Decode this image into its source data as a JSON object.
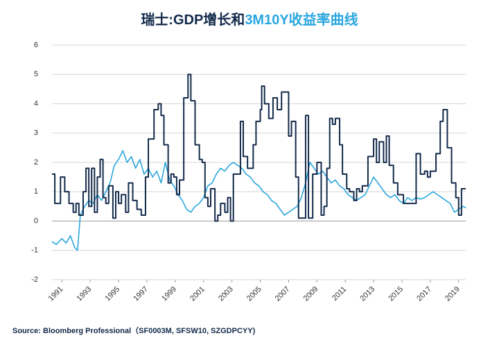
{
  "chart_data": {
    "type": "line",
    "title": [
      {
        "text": "瑞士:GDP增长和",
        "color": "#12294a"
      },
      {
        "text": "3M10Y收益率曲线",
        "color": "#2aa6de"
      }
    ],
    "source": "Source: Bloomberg Professional（SF0003M, SFSW10, SZGDPCYY)",
    "xlim": [
      1990.3,
      2019.5
    ],
    "xticks": [
      1991,
      1993,
      1995,
      1997,
      1999,
      2001,
      2003,
      2005,
      2007,
      2009,
      2011,
      2013,
      2015,
      2017,
      2019
    ],
    "ylim": [
      -2,
      6
    ],
    "yticks": [
      -2,
      -1,
      0,
      1,
      2,
      3,
      4,
      5,
      6
    ],
    "grid": true,
    "series": [
      {
        "color": "#12294a",
        "step": true,
        "x": [
          1990.3,
          1990.5,
          1990.9,
          1991.2,
          1991.5,
          1991.8,
          1992.0,
          1992.2,
          1992.5,
          1992.7,
          1992.9,
          1993.1,
          1993.3,
          1993.5,
          1993.7,
          1993.9,
          1994.1,
          1994.3,
          1994.6,
          1994.8,
          1995.0,
          1995.2,
          1995.5,
          1995.7,
          1996.0,
          1996.3,
          1996.6,
          1996.9,
          1997.1,
          1997.5,
          1997.8,
          1998.0,
          1998.2,
          1998.5,
          1998.7,
          1998.9,
          1999.1,
          1999.3,
          1999.6,
          1999.9,
          2000.1,
          2000.4,
          2000.7,
          2000.9,
          2001.1,
          2001.3,
          2001.5,
          2001.8,
          2002.0,
          2002.2,
          2002.5,
          2002.7,
          2002.9,
          2003.1,
          2003.6,
          2003.8,
          2004.1,
          2004.5,
          2004.7,
          2005.0,
          2005.1,
          2005.3,
          2005.6,
          2005.9,
          2006.2,
          2006.5,
          2006.7,
          2007.0,
          2007.2,
          2007.5,
          2007.7,
          2008.2,
          2008.4,
          2008.7,
          2009.0,
          2009.3,
          2009.5,
          2009.7,
          2009.9,
          2010.1,
          2010.3,
          2010.6,
          2010.8,
          2011.1,
          2011.3,
          2011.6,
          2011.8,
          2012.0,
          2012.2,
          2012.6,
          2012.8,
          2013.0,
          2013.2,
          2013.4,
          2013.7,
          2013.9,
          2014.1,
          2014.4,
          2014.7,
          2015.1,
          2015.5,
          2016.0,
          2016.3,
          2016.6,
          2016.8,
          2017.0,
          2017.4,
          2017.7,
          2017.9,
          2018.2,
          2018.5,
          2018.8,
          2019.0,
          2019.2,
          2019.5
        ],
        "values": [
          1.6,
          0.6,
          1.5,
          1.0,
          0.6,
          0.3,
          0.6,
          0.2,
          1.0,
          1.8,
          0.5,
          1.8,
          0.3,
          1.5,
          2.1,
          0.8,
          0.6,
          1.2,
          0.1,
          1.0,
          0.6,
          0.9,
          0.3,
          1.3,
          0.7,
          0.4,
          0.2,
          1.5,
          2.8,
          3.8,
          4.0,
          3.6,
          2.6,
          1.3,
          1.6,
          1.5,
          0.9,
          1.4,
          4.2,
          5.0,
          4.1,
          2.6,
          2.1,
          2.0,
          0.8,
          0.5,
          1.1,
          0.0,
          0.2,
          0.6,
          0.3,
          0.8,
          0.0,
          1.6,
          3.4,
          2.2,
          1.8,
          2.6,
          3.4,
          3.8,
          4.6,
          4.0,
          3.5,
          4.2,
          3.8,
          4.4,
          4.4,
          2.9,
          3.4,
          1.5,
          0.1,
          3.6,
          0.1,
          1.6,
          2.0,
          0.2,
          0.5,
          1.8,
          3.5,
          3.3,
          3.5,
          2.6,
          1.6,
          1.1,
          1.0,
          0.7,
          1.1,
          1.0,
          1.2,
          2.2,
          2.2,
          2.8,
          2.0,
          2.7,
          2.0,
          2.9,
          1.9,
          1.3,
          0.9,
          0.6,
          0.6,
          2.3,
          1.6,
          1.7,
          1.5,
          1.7,
          2.3,
          3.4,
          3.8,
          2.5,
          1.3,
          0.8,
          0.2,
          1.1,
          1.1
        ]
      },
      {
        "color": "#2aa6de",
        "x": [
          1990.3,
          1990.6,
          1991.0,
          1991.3,
          1991.6,
          1991.9,
          1992.1,
          1992.3,
          1992.6,
          1992.9,
          1993.2,
          1993.5,
          1993.8,
          1994.1,
          1994.4,
          1994.7,
          1995.0,
          1995.3,
          1995.6,
          1995.9,
          1996.2,
          1996.5,
          1996.8,
          1997.1,
          1997.4,
          1997.7,
          1998.0,
          1998.3,
          1998.6,
          1998.9,
          1999.2,
          1999.5,
          1999.8,
          2000.1,
          2000.4,
          2000.7,
          2001.0,
          2001.3,
          2001.6,
          2001.9,
          2002.2,
          2002.5,
          2002.8,
          2003.1,
          2003.4,
          2003.7,
          2004.0,
          2004.3,
          2004.6,
          2004.9,
          2005.2,
          2005.5,
          2005.8,
          2006.1,
          2006.4,
          2006.7,
          2007.0,
          2007.3,
          2007.6,
          2007.9,
          2008.2,
          2008.5,
          2008.8,
          2009.1,
          2009.4,
          2009.7,
          2010.0,
          2010.3,
          2010.6,
          2010.9,
          2011.2,
          2011.5,
          2011.8,
          2012.1,
          2012.4,
          2012.7,
          2013.0,
          2013.3,
          2013.6,
          2013.9,
          2014.2,
          2014.5,
          2014.8,
          2015.1,
          2015.4,
          2015.7,
          2016.0,
          2016.3,
          2016.6,
          2016.9,
          2017.2,
          2017.5,
          2017.8,
          2018.1,
          2018.4,
          2018.7,
          2019.0,
          2019.3,
          2019.5
        ],
        "values": [
          -0.7,
          -0.8,
          -0.6,
          -0.75,
          -0.5,
          -0.9,
          -1.0,
          0.2,
          0.5,
          0.7,
          0.6,
          0.9,
          0.7,
          1.0,
          1.3,
          1.9,
          2.1,
          2.4,
          2.0,
          2.2,
          1.8,
          2.1,
          1.6,
          1.8,
          1.5,
          1.7,
          1.3,
          2.0,
          1.4,
          1.2,
          0.9,
          0.7,
          0.4,
          0.3,
          0.5,
          0.6,
          0.8,
          1.2,
          1.3,
          1.6,
          1.8,
          1.7,
          1.9,
          2.0,
          1.9,
          1.8,
          1.6,
          1.5,
          1.3,
          1.2,
          1.0,
          0.9,
          0.7,
          0.6,
          0.4,
          0.2,
          0.3,
          0.4,
          0.5,
          0.8,
          1.3,
          2.0,
          1.8,
          1.6,
          1.7,
          1.5,
          1.3,
          1.4,
          1.2,
          1.1,
          0.9,
          0.8,
          0.7,
          0.8,
          0.9,
          1.2,
          1.5,
          1.3,
          1.1,
          0.9,
          0.8,
          0.9,
          0.7,
          0.6,
          0.8,
          0.7,
          0.8,
          0.75,
          0.8,
          0.9,
          1.0,
          0.9,
          0.8,
          0.7,
          0.6,
          0.3,
          0.4,
          0.5,
          0.45
        ]
      }
    ]
  }
}
